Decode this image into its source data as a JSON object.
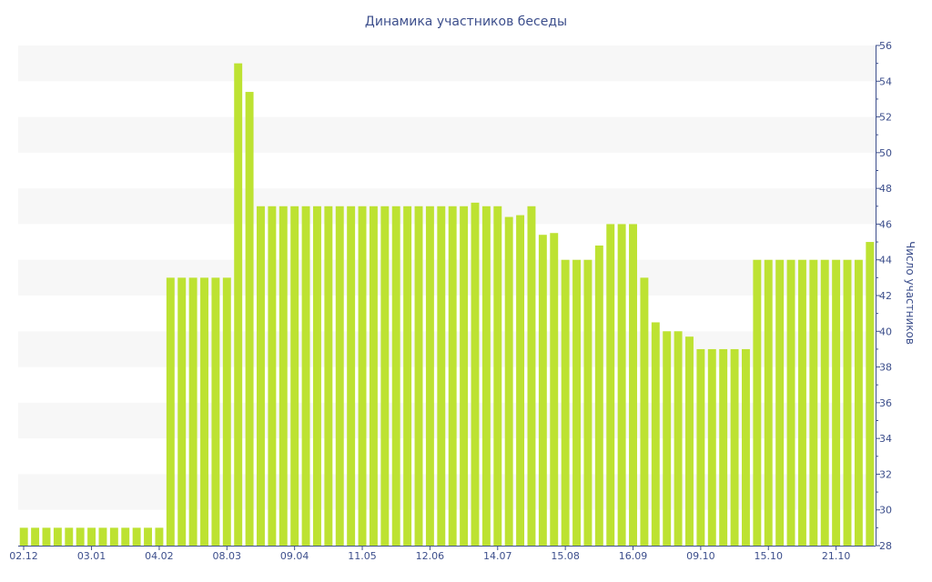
{
  "chart_data": {
    "type": "bar",
    "title": "Динамика участников беседы",
    "xlabel": "",
    "ylabel": "Число участников",
    "ylim": [
      28,
      56
    ],
    "y_ticks": [
      28,
      30,
      32,
      34,
      36,
      38,
      40,
      42,
      44,
      46,
      48,
      50,
      52,
      54,
      56
    ],
    "y_axis_side": "right",
    "grid": "alternating horizontal bands",
    "x_tick_labels": [
      "02.12",
      "03.01",
      "04.02",
      "08.03",
      "09.04",
      "11.05",
      "12.06",
      "14.07",
      "15.08",
      "16.09",
      "09.10",
      "15.10",
      "21.10"
    ],
    "x_tick_positions": [
      0,
      6,
      12,
      18,
      24,
      30,
      36,
      42,
      48,
      54,
      60,
      66,
      72
    ],
    "values": [
      29,
      29,
      29,
      29,
      29,
      29,
      29,
      29,
      29,
      29,
      29,
      29,
      29,
      43,
      43,
      43,
      43,
      43,
      43,
      55,
      53.4,
      47,
      47,
      47,
      47,
      47,
      47,
      47,
      47,
      47,
      47,
      47,
      47,
      47,
      47,
      47,
      47,
      47,
      47,
      47,
      47.2,
      47,
      47,
      46.4,
      46.5,
      47,
      45.4,
      45.5,
      44,
      44,
      44,
      44.8,
      46,
      46,
      46,
      43,
      40.5,
      40,
      40,
      39.7,
      39,
      39,
      39,
      39,
      39,
      44,
      44,
      44,
      44,
      44,
      44,
      44,
      44,
      44,
      44,
      45
    ],
    "colors": {
      "bar": "#bde232",
      "band": "#f7f7f7",
      "axis": "#3d4f8c",
      "text": "#3d4f8c"
    }
  }
}
